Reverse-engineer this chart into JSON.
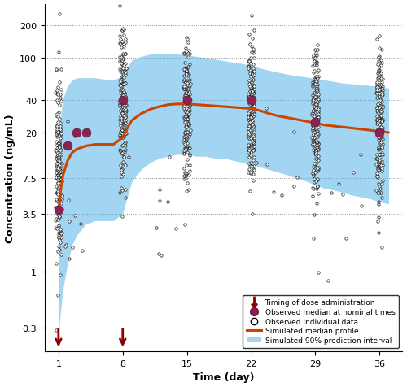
{
  "title": "",
  "xlabel": "Time (day)",
  "ylabel": "Concentration (ng/mL)",
  "xticks": [
    1,
    8,
    15,
    22,
    29,
    36
  ],
  "yticks_log": [
    0.3,
    1.0,
    3.5,
    7.5,
    20,
    40,
    100,
    200
  ],
  "ytick_labels": [
    "0.3",
    "1",
    "3.5",
    "7.5",
    "20",
    "40",
    "100",
    "200"
  ],
  "xlim": [
    -0.5,
    38.5
  ],
  "ylim_log": [
    0.18,
    320
  ],
  "dose_days": [
    1,
    8
  ],
  "observed_median_times": [
    1,
    2,
    3,
    4,
    8,
    15,
    22,
    29,
    36
  ],
  "observed_median_values": [
    3.8,
    15.0,
    20.0,
    20.0,
    40.0,
    40.0,
    40.0,
    25.0,
    20.0
  ],
  "sim_median_x": [
    1,
    1.2,
    1.5,
    2,
    2.5,
    3,
    4,
    5,
    6,
    7,
    8,
    8.5,
    9,
    10,
    11,
    12,
    13,
    14,
    15,
    16,
    17,
    18,
    19,
    20,
    21,
    22,
    23,
    24,
    25,
    26,
    27,
    28,
    29,
    30,
    31,
    32,
    33,
    34,
    35,
    36,
    37
  ],
  "sim_median_y": [
    3.5,
    5.5,
    8.0,
    11.0,
    13.0,
    14.0,
    15.0,
    15.5,
    15.5,
    15.5,
    18.0,
    22.0,
    26.0,
    30.0,
    33.0,
    35.0,
    36.5,
    37.0,
    37.0,
    36.5,
    36.0,
    35.5,
    35.0,
    34.5,
    34.0,
    33.5,
    32.0,
    30.0,
    28.5,
    27.5,
    26.5,
    25.5,
    24.5,
    23.5,
    23.0,
    22.5,
    22.0,
    21.5,
    21.0,
    20.5,
    20.0
  ],
  "sim_lower_x": [
    1,
    1.2,
    1.5,
    2,
    2.5,
    3,
    4,
    5,
    6,
    7,
    8,
    8.5,
    9,
    10,
    11,
    12,
    13,
    14,
    15,
    16,
    17,
    18,
    19,
    20,
    21,
    22,
    23,
    24,
    25,
    26,
    27,
    28,
    29,
    30,
    31,
    32,
    33,
    34,
    35,
    36,
    37
  ],
  "sim_lower_y": [
    0.25,
    0.4,
    0.7,
    1.2,
    1.8,
    2.2,
    2.8,
    3.0,
    3.0,
    3.0,
    3.5,
    5.0,
    7.0,
    9.0,
    10.5,
    11.5,
    12.0,
    12.5,
    12.5,
    12.0,
    12.0,
    11.5,
    11.5,
    11.0,
    10.5,
    10.0,
    9.5,
    9.0,
    8.5,
    8.0,
    7.5,
    7.0,
    6.5,
    6.0,
    5.8,
    5.5,
    5.2,
    5.0,
    4.8,
    4.5,
    4.3
  ],
  "sim_upper_y": [
    18.0,
    28.0,
    42.0,
    55.0,
    62.0,
    65.0,
    65.0,
    65.0,
    63.0,
    62.0,
    68.0,
    82.0,
    95.0,
    103.0,
    108.0,
    110.0,
    110.0,
    108.0,
    106.0,
    103.0,
    100.0,
    97.0,
    94.0,
    91.0,
    88.0,
    85.0,
    80.0,
    76.0,
    73.0,
    70.0,
    68.0,
    66.0,
    64.0,
    62.0,
    60.0,
    58.0,
    57.0,
    56.0,
    55.0,
    54.0,
    52.0
  ],
  "scatter_color": "black",
  "median_color": "#8B2252",
  "median_edgecolor": "#5C1A38",
  "sim_median_color": "#CC4400",
  "sim_band_color": "#56B4E9",
  "sim_band_alpha": 0.55,
  "dose_arrow_color": "#8B0000",
  "background_color": "#ffffff",
  "grid_color": "#888888",
  "legend_loc": "lower right"
}
